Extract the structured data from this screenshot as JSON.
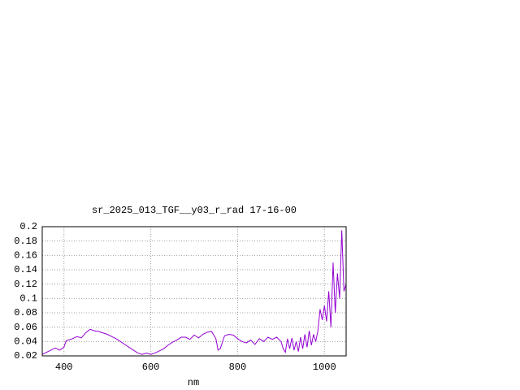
{
  "chart_data": {
    "type": "line",
    "title": "sr_2025_013_TGF__y03_r_rad 17-16-00",
    "xlabel": "nm",
    "xlim": [
      350,
      1050
    ],
    "xticks": [
      400,
      600,
      800,
      1000
    ],
    "ylim": [
      0.02,
      0.2
    ],
    "yticks": [
      0.02,
      0.04,
      0.06,
      0.08,
      0.1,
      0.12,
      0.14,
      0.16,
      0.18,
      0.2
    ],
    "grid": true,
    "series": [
      {
        "color": "#9400d3",
        "x": [
          350,
          360,
          370,
          380,
          390,
          400,
          405,
          420,
          430,
          440,
          450,
          460,
          470,
          480,
          490,
          500,
          510,
          520,
          530,
          540,
          550,
          560,
          570,
          580,
          590,
          600,
          610,
          620,
          630,
          640,
          650,
          660,
          670,
          680,
          690,
          700,
          710,
          720,
          730,
          740,
          750,
          755,
          760,
          770,
          780,
          790,
          800,
          810,
          820,
          830,
          840,
          850,
          860,
          870,
          880,
          890,
          900,
          905,
          910,
          915,
          920,
          925,
          930,
          935,
          940,
          945,
          950,
          955,
          960,
          965,
          970,
          975,
          980,
          985,
          990,
          995,
          1000,
          1005,
          1010,
          1015,
          1020,
          1025,
          1030,
          1035,
          1040,
          1045,
          1050
        ],
        "values": [
          0.022,
          0.025,
          0.028,
          0.031,
          0.028,
          0.032,
          0.041,
          0.044,
          0.047,
          0.045,
          0.052,
          0.057,
          0.055,
          0.054,
          0.052,
          0.05,
          0.047,
          0.044,
          0.04,
          0.036,
          0.032,
          0.028,
          0.024,
          0.022,
          0.024,
          0.022,
          0.024,
          0.027,
          0.03,
          0.035,
          0.039,
          0.042,
          0.046,
          0.046,
          0.043,
          0.049,
          0.045,
          0.05,
          0.053,
          0.054,
          0.044,
          0.028,
          0.03,
          0.048,
          0.05,
          0.049,
          0.044,
          0.04,
          0.038,
          0.042,
          0.036,
          0.044,
          0.04,
          0.046,
          0.043,
          0.046,
          0.04,
          0.03,
          0.025,
          0.044,
          0.03,
          0.045,
          0.028,
          0.04,
          0.026,
          0.046,
          0.03,
          0.05,
          0.032,
          0.055,
          0.035,
          0.05,
          0.04,
          0.055,
          0.085,
          0.07,
          0.09,
          0.068,
          0.11,
          0.06,
          0.15,
          0.08,
          0.135,
          0.1,
          0.195,
          0.11,
          0.12
        ]
      }
    ]
  }
}
